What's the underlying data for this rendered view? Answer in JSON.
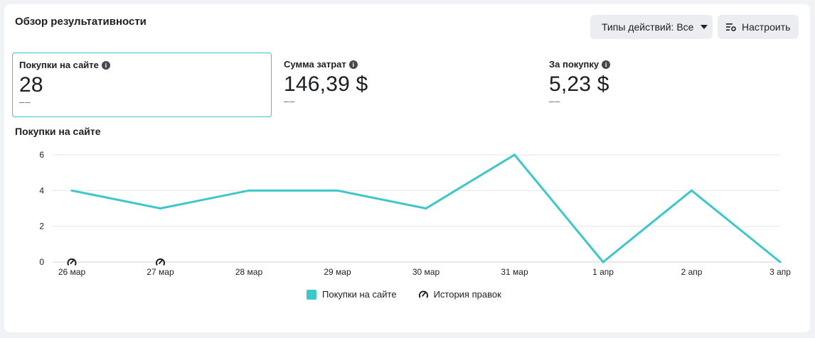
{
  "header": {
    "title": "Обзор результативности",
    "action_types_label": "Типы действий: Все",
    "configure_label": "Настроить"
  },
  "metrics": [
    {
      "label": "Покупки на сайте",
      "value": "28",
      "sub": "––"
    },
    {
      "label": "Сумма затрат",
      "value": "146,39 $",
      "sub": "––"
    },
    {
      "label": "За покупку",
      "value": "5,23 $",
      "sub": "––"
    }
  ],
  "chart_title": "Покупки на сайте",
  "chart_data": {
    "type": "line",
    "categories": [
      "26 мар",
      "27 мар",
      "28 мар",
      "29 мар",
      "30 мар",
      "31 мар",
      "1 апр",
      "2 апр",
      "3 апр"
    ],
    "series": [
      {
        "name": "Покупки на сайте",
        "values": [
          4,
          3,
          4,
          4,
          3,
          6,
          0,
          4,
          0
        ],
        "color": "#3ec7cb"
      }
    ],
    "yticks": [
      0,
      2,
      4,
      6
    ],
    "ylim": [
      0,
      6
    ],
    "grid": true,
    "legend_position": "bottom",
    "edit_history_markers": [
      "26 мар",
      "27 мар"
    ]
  },
  "legend": {
    "series_label": "Покупки на сайте",
    "history_label": "История правок"
  },
  "icons": {
    "info": "info-icon",
    "caret": "caret-down-icon",
    "settings": "settings-sliders-icon",
    "history": "edit-history-icon"
  }
}
